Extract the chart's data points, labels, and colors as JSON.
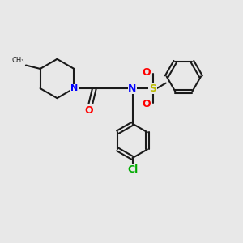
{
  "background_color": "#e8e8e8",
  "bond_color": "#1a1a1a",
  "N_color": "#0000ff",
  "O_color": "#ff0000",
  "S_color": "#bbbb00",
  "Cl_color": "#00aa00",
  "line_width": 1.5,
  "figsize": [
    3.0,
    3.0
  ],
  "dpi": 100,
  "xlim": [
    0,
    10
  ],
  "ylim": [
    0,
    10
  ]
}
